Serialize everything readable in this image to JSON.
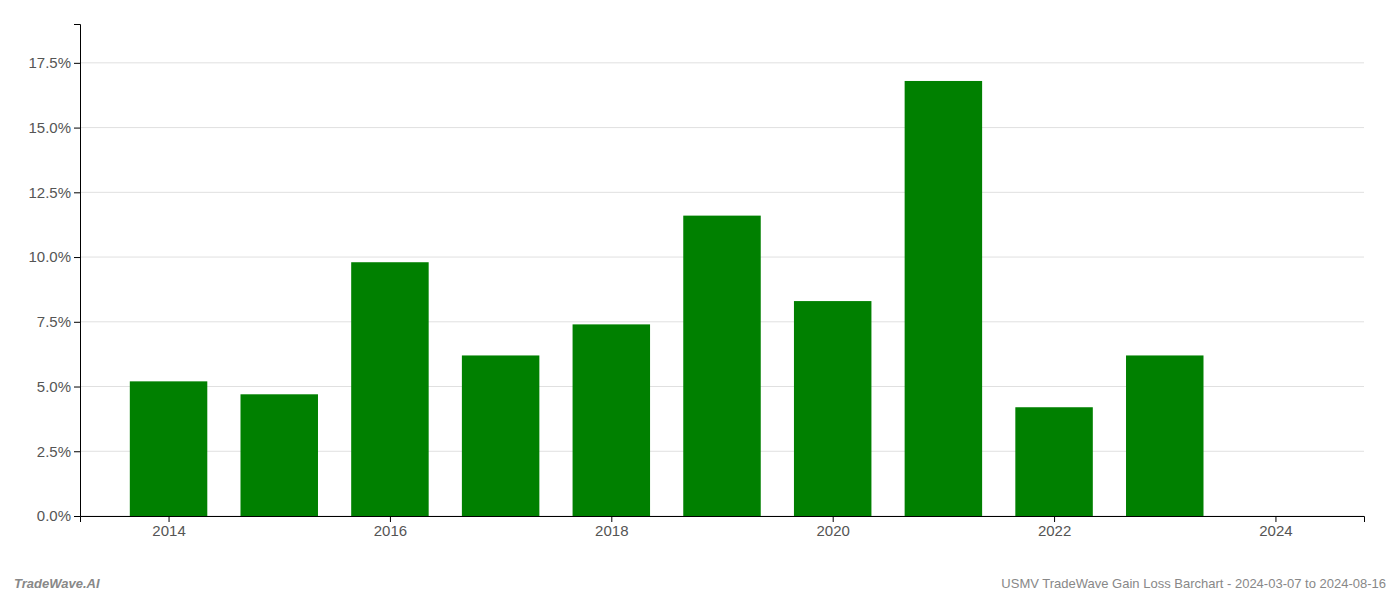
{
  "chart_data": {
    "type": "bar",
    "x": [
      2014,
      2015,
      2016,
      2017,
      2018,
      2019,
      2020,
      2021,
      2022,
      2023
    ],
    "values": [
      0.052,
      0.047,
      0.098,
      0.062,
      0.074,
      0.116,
      0.083,
      0.168,
      0.042,
      0.062
    ],
    "color": "#008000",
    "xlim": [
      2013.2,
      2024.8
    ],
    "xticks": [
      2014,
      2016,
      2018,
      2020,
      2022,
      2024
    ],
    "ylim": [
      0,
      0.19
    ],
    "yticks": [
      {
        "value": 0.0,
        "label": "0.0%"
      },
      {
        "value": 0.025,
        "label": "2.5%"
      },
      {
        "value": 0.05,
        "label": "5.0%"
      },
      {
        "value": 0.075,
        "label": "7.5%"
      },
      {
        "value": 0.1,
        "label": "10.0%"
      },
      {
        "value": 0.125,
        "label": "12.5%"
      },
      {
        "value": 0.15,
        "label": "15.0%"
      },
      {
        "value": 0.175,
        "label": "17.5%"
      }
    ],
    "grid": true,
    "annotations": [
      "TradeWave.AI",
      "USMV TradeWave Gain Loss Barchart - 2024-03-07 to 2024-08-16"
    ]
  }
}
